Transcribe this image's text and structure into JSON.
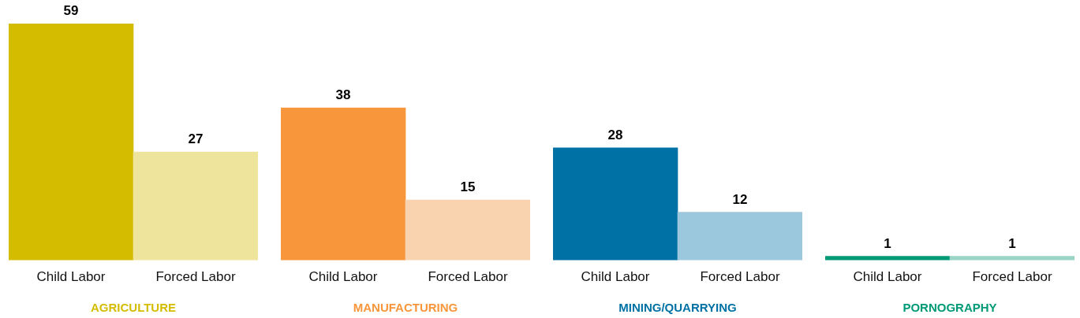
{
  "chart_data": [
    {
      "type": "bar",
      "xlabel": "AGRICULTURE",
      "categories": [
        "Child Labor",
        "Forced Labor"
      ],
      "values": [
        59,
        27
      ],
      "colors": [
        "#d4bc00",
        "#efe49c"
      ],
      "data_labels": true
    },
    {
      "type": "bar",
      "xlabel": "MANUFACTURING",
      "categories": [
        "Child Labor",
        "Forced Labor"
      ],
      "values": [
        38,
        15
      ],
      "colors": [
        "#f7963a",
        "#f9d3b0"
      ],
      "data_labels": true
    },
    {
      "type": "bar",
      "xlabel": "MINING/QUARRYING",
      "categories": [
        "Child Labor",
        "Forced Labor"
      ],
      "values": [
        28,
        12
      ],
      "colors": [
        "#0071a4",
        "#9bc8dc"
      ],
      "data_labels": true
    },
    {
      "type": "bar",
      "xlabel": "PORNOGRAPHY",
      "categories": [
        "Child Labor",
        "Forced Labor"
      ],
      "values": [
        1,
        1
      ],
      "colors": [
        "#009a77",
        "#99d5c6"
      ],
      "data_labels": true
    }
  ]
}
